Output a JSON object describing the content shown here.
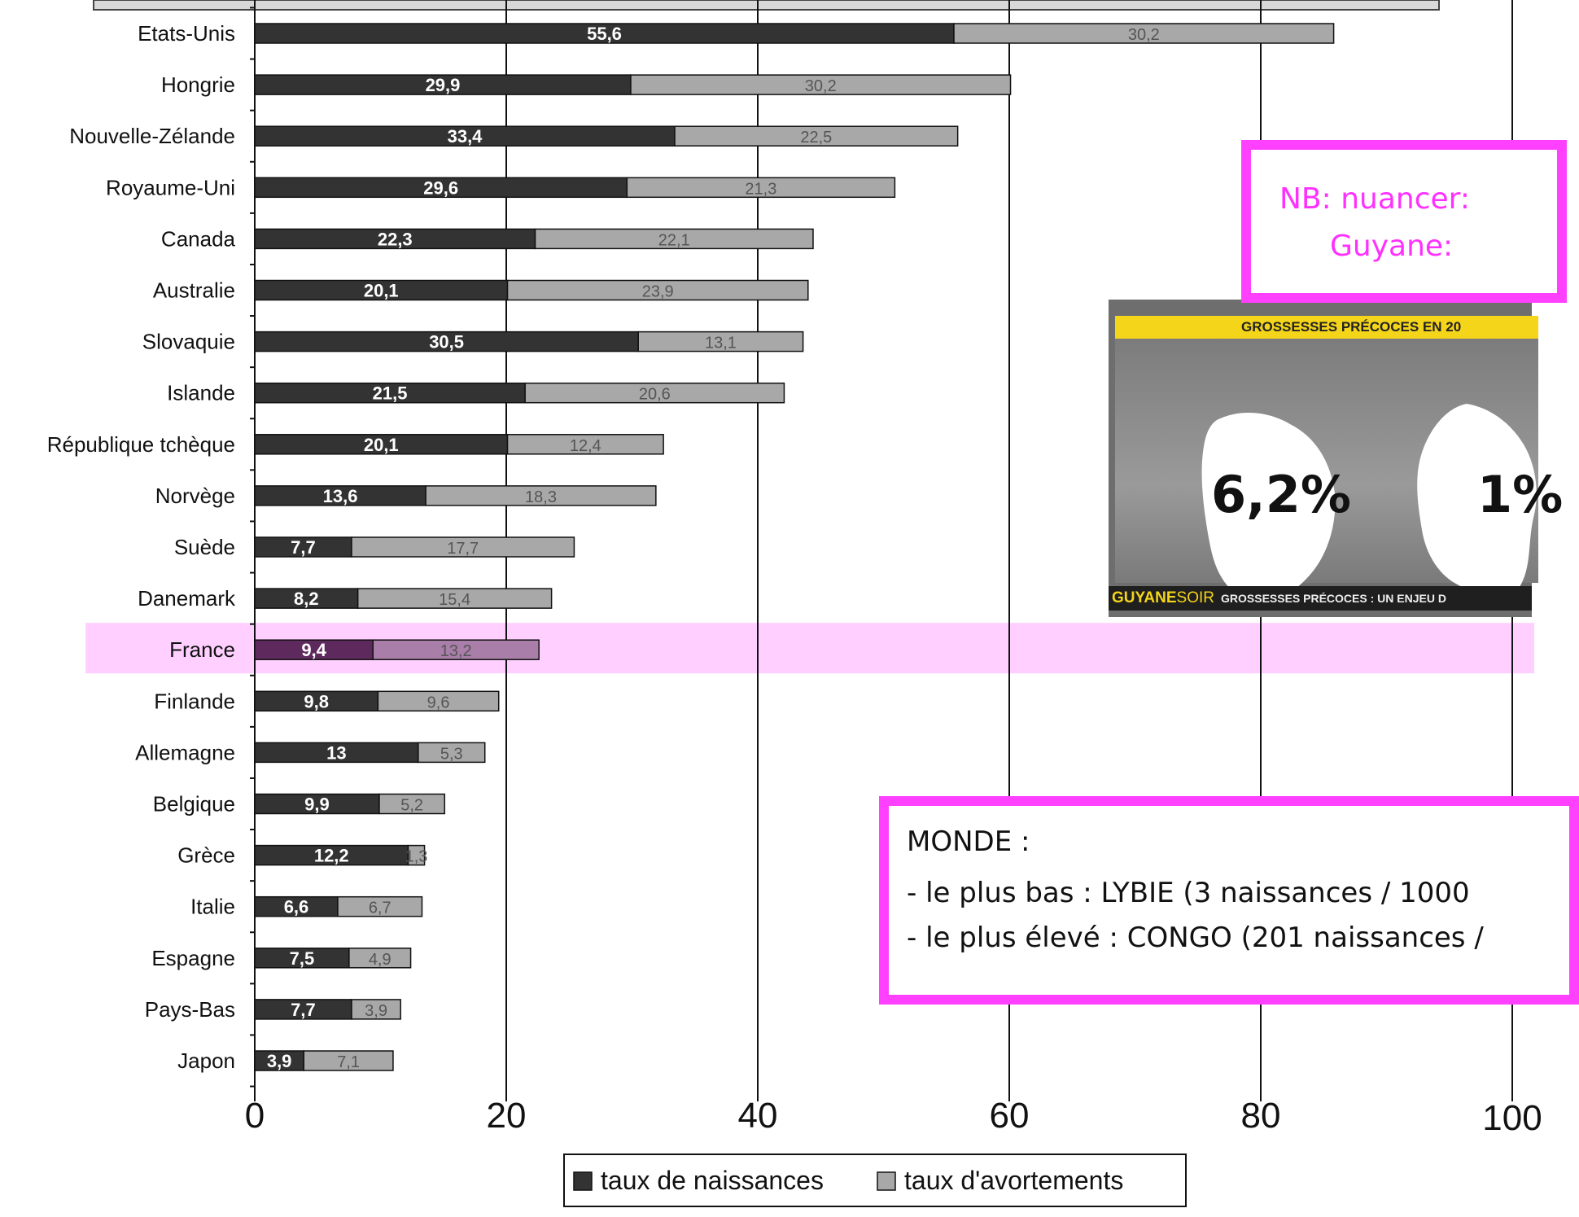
{
  "chart_data": {
    "type": "bar",
    "orientation": "horizontal",
    "stacked": true,
    "categories": [
      "Etats-Unis",
      "Hongrie",
      "Nouvelle-Zélande",
      "Royaume-Uni",
      "Canada",
      "Australie",
      "Slovaquie",
      "Islande",
      "République tchèque",
      "Norvège",
      "Suède",
      "Danemark",
      "France",
      "Finlande",
      "Allemagne",
      "Belgique",
      "Grèce",
      "Italie",
      "Espagne",
      "Pays-Bas",
      "Japon"
    ],
    "series": [
      {
        "name": "taux de naissances",
        "color": "#333333",
        "values": [
          55.6,
          29.9,
          33.4,
          29.6,
          22.3,
          20.1,
          30.5,
          21.5,
          20.1,
          13.6,
          7.7,
          8.2,
          9.4,
          9.8,
          13,
          9.9,
          12.2,
          6.6,
          7.5,
          7.7,
          3.9
        ],
        "labels": [
          "55,6",
          "29,9",
          "33,4",
          "29,6",
          "22,3",
          "20,1",
          "30,5",
          "21,5",
          "20,1",
          "13,6",
          "7,7",
          "8,2",
          "9,4",
          "9,8",
          "13",
          "9,9",
          "12,2",
          "6,6",
          "7,5",
          "7,7",
          "3,9"
        ]
      },
      {
        "name": "taux d'avortements",
        "color": "#a8a8a8",
        "values": [
          30.2,
          30.2,
          22.5,
          21.3,
          22.1,
          23.9,
          13.1,
          20.6,
          12.4,
          18.3,
          17.7,
          15.4,
          13.2,
          9.6,
          5.3,
          5.2,
          1.3,
          6.7,
          4.9,
          3.9,
          7.1
        ],
        "labels": [
          "30,2",
          "30,2",
          "22,5",
          "21,3",
          "22,1",
          "23,9",
          "13,1",
          "20,6",
          "12,4",
          "18,3",
          "17,7",
          "15,4",
          "13,2",
          "9,6",
          "5,3",
          "5,2",
          "1,3",
          "6,7",
          "4,9",
          "3,9",
          "7,1"
        ]
      }
    ],
    "xlim": [
      0,
      100
    ],
    "xticks": [
      "0",
      "20",
      "40",
      "60",
      "80",
      "100"
    ],
    "grid": true,
    "legend_position": "bottom",
    "highlight_category": "France",
    "highlight_color": "#ffd0ff"
  },
  "annotations": {
    "nb_note": {
      "line1": "NB: nuancer:",
      "line2": "Guyane:"
    },
    "monde_note": {
      "title": "MONDE :",
      "low": "- le plus bas : LYBIE  (3 naissances / 1000",
      "high": "- le plus élevé : CONGO (201 naissances /"
    },
    "accent_color": "#ff40ff"
  },
  "news_card": {
    "banner": "GROSSESSES PRÉCOCES EN 20",
    "guyane_pct": "6,2%",
    "france_pct": "1%",
    "brand_a": "GUYANE",
    "brand_b": "SOIR",
    "ticker": "GROSSESSES PRÉCOCES : UN ENJEU D"
  }
}
